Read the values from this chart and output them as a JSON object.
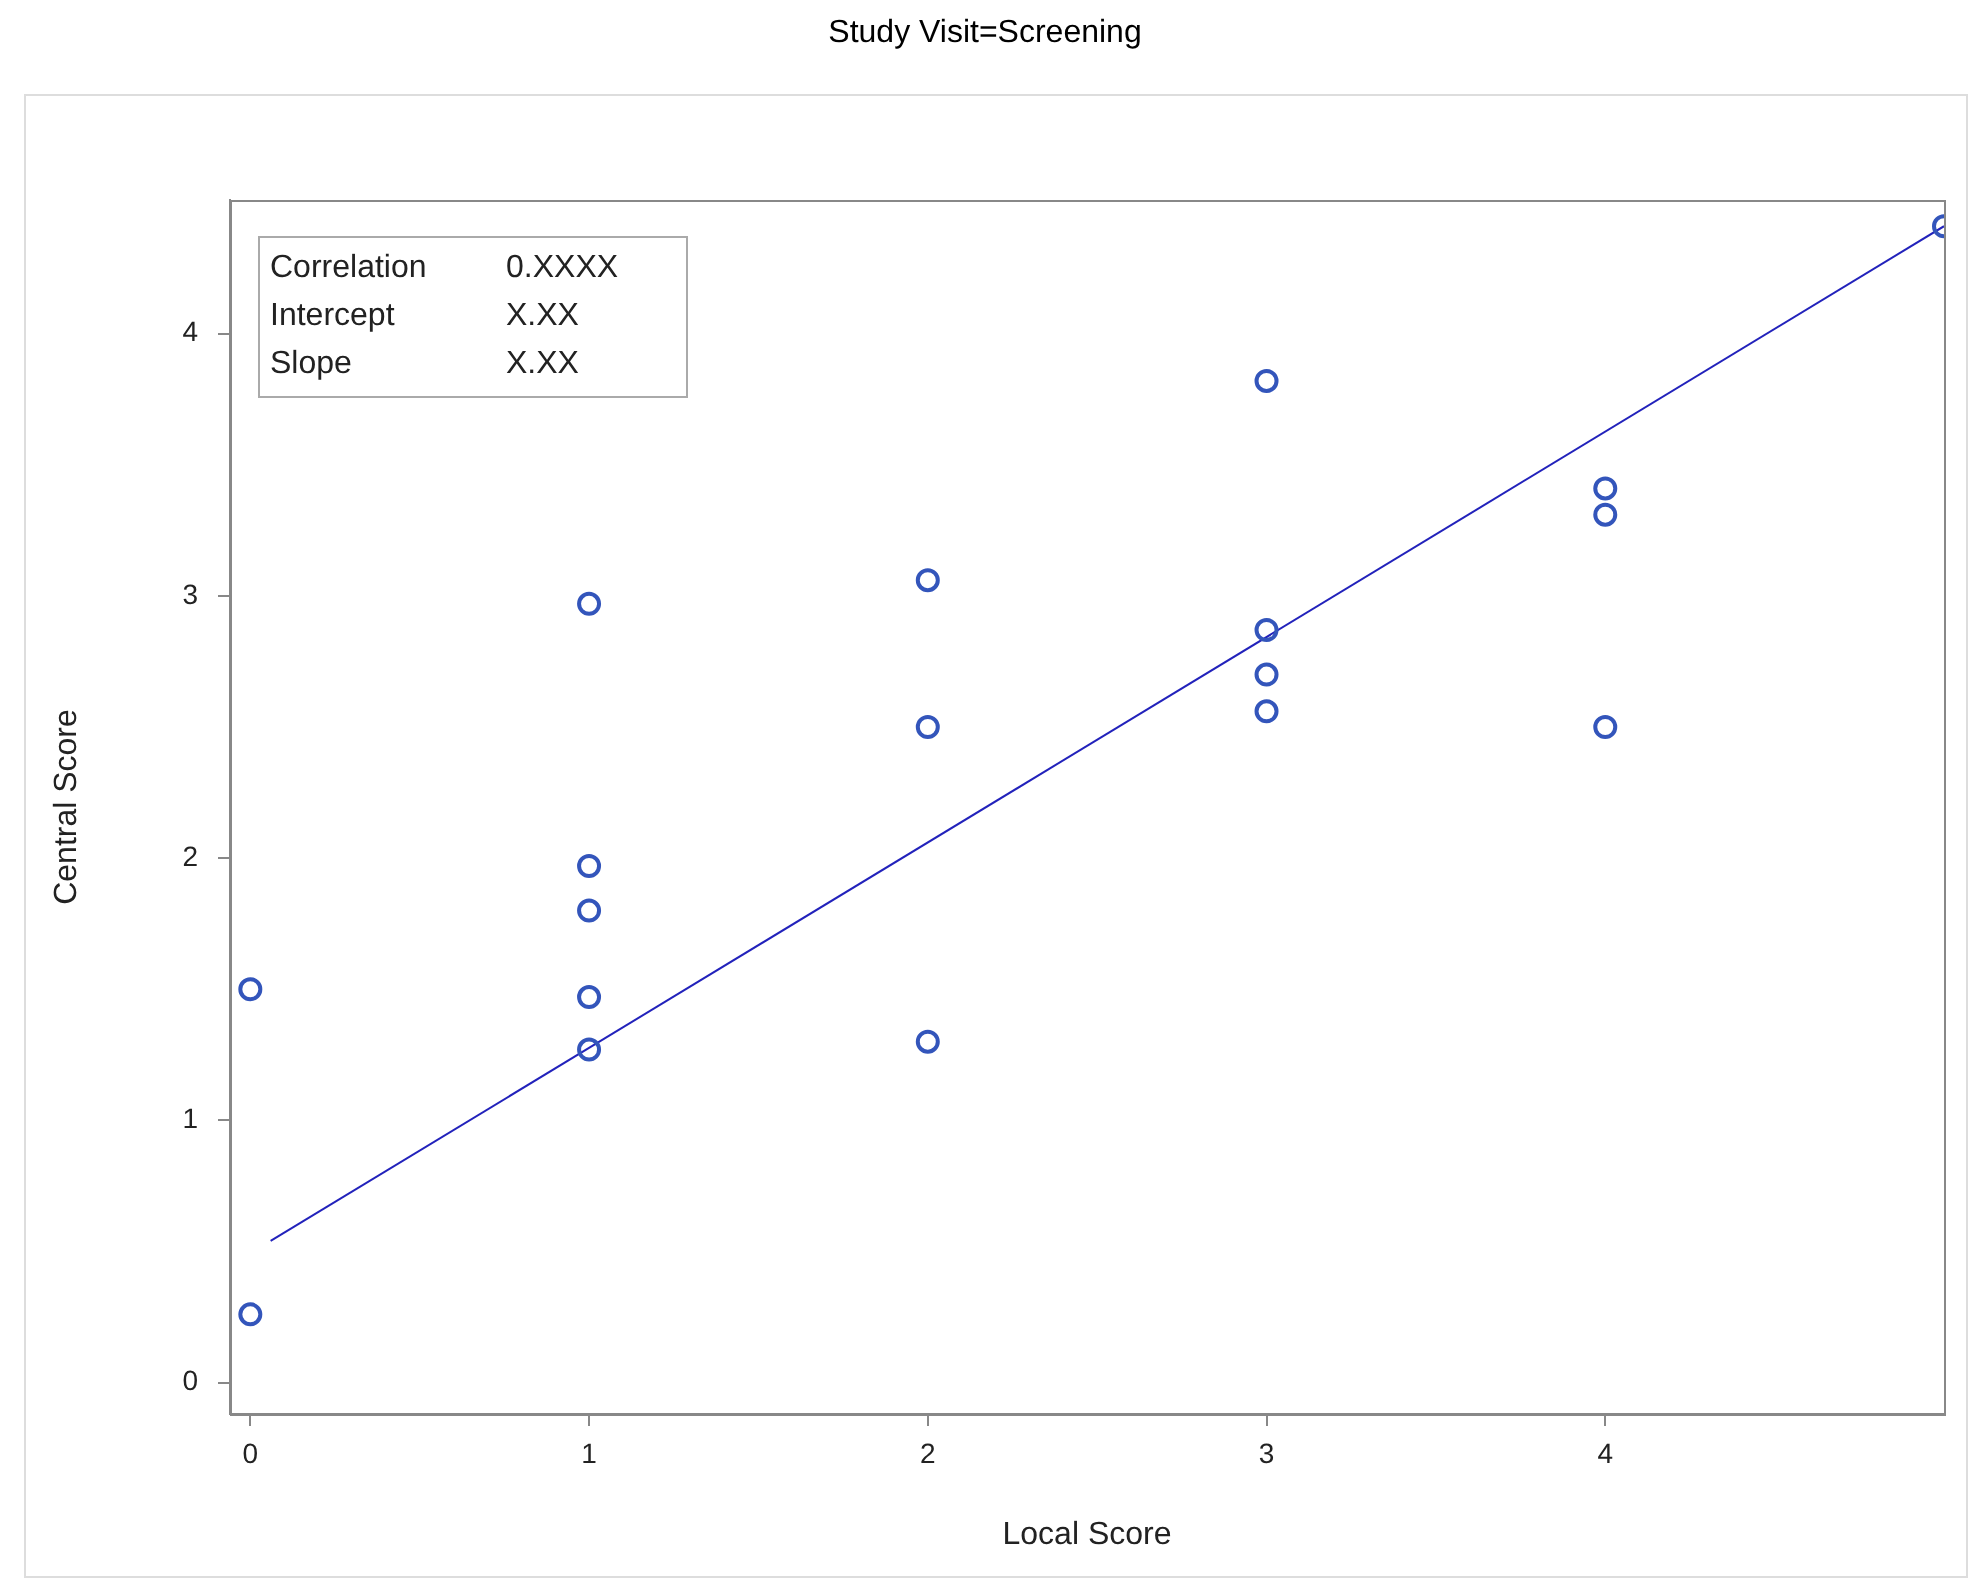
{
  "chart_data": {
    "type": "scatter",
    "title": "Study Visit=Screening",
    "xlabel": "Local Score",
    "ylabel": "Central Score",
    "xlim": [
      -0.06,
      5
    ],
    "xticks": [
      0,
      1,
      2,
      3,
      4
    ],
    "ylim": [
      -0.12,
      4.51
    ],
    "yticks": [
      0,
      1,
      2,
      3,
      4
    ],
    "grid": false,
    "legend": false,
    "annotations": [
      "Correlation",
      "0.XXXX",
      "Intercept",
      "X.XX",
      "Slope",
      "X.XX"
    ],
    "series": [
      {
        "marker": "circle",
        "color": "#3355bb",
        "x": [
          0,
          0,
          1,
          1,
          1,
          1,
          1,
          2,
          2,
          2,
          3,
          3,
          3,
          3,
          4,
          4,
          4,
          5
        ],
        "values": [
          1.5,
          0.26,
          2.97,
          1.97,
          1.8,
          1.47,
          1.27,
          3.06,
          2.5,
          1.3,
          3.82,
          2.87,
          2.7,
          2.56,
          3.41,
          3.31,
          2.5,
          4.41
        ]
      },
      {
        "type": "line",
        "marker": "none",
        "color": "#2222bb",
        "x": [
          0.06,
          5
        ],
        "values": [
          0.54,
          4.41
        ]
      }
    ]
  }
}
